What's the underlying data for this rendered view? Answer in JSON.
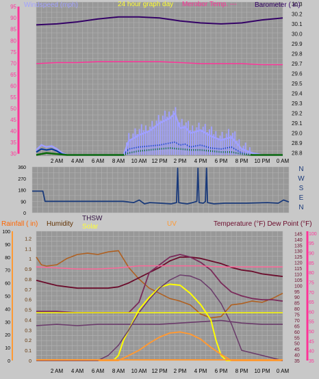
{
  "header": {
    "windspeed_label": "Windspeed (mph)",
    "graph_title": "24 hour graph day",
    "outdoor_label": "Merobor Temp. ---",
    "barometer_label": "Barometer ( in)"
  },
  "direction_labels": [
    "N",
    "W",
    "S",
    "E",
    "N"
  ],
  "bottom_header": {
    "rainfall_label": "Rainfall ( in)",
    "humidity_label": "Humidity",
    "thsw_label": "THSW",
    "solar_label": "Solar",
    "uv_label": "UV",
    "temp_label": "Temperature (°F) Dew Point (°F)"
  },
  "time_labels": [
    "2 AM",
    "4 AM",
    "6 AM",
    "8 AM",
    "10 AM",
    "12 PM",
    "2 PM",
    "4 PM",
    "6 PM",
    "8 PM",
    "10 PM",
    "0 AM"
  ],
  "colors": {
    "plot_bg": "#989898",
    "grid": "#b4b4b4",
    "wind_left": "#ff3399",
    "barometer": "#330066",
    "wind_gust": "#a0a0ff",
    "wind_avg": "#003399",
    "wind_low": "#0a6a0a",
    "direction": "#1a3a7a",
    "humidity": "#b06020",
    "temperature": "#6a0a2a",
    "dew_point": "#7a2a5a",
    "thsw": "#6a3a6a",
    "solar": "#ffff00",
    "uv": "#ff9933",
    "rain": "#ff6699",
    "title_yellow": "#ffff33"
  },
  "chart_data": [
    {
      "type": "line",
      "name": "wind-barometer",
      "left_axis": {
        "label": "Windspeed (mph)",
        "ticks": [
          30,
          35,
          40,
          45,
          50,
          55,
          60,
          65,
          70,
          75,
          80,
          85,
          90,
          95
        ],
        "ylim": [
          29,
          97
        ]
      },
      "right_axis": {
        "label": "Barometer ( in)",
        "ticks": [
          28.8,
          28.9,
          29.0,
          29.1,
          29.2,
          29.3,
          29.4,
          29.5,
          29.6,
          29.7,
          29.8,
          29.9,
          30.0,
          30.1,
          30.2,
          30.3
        ],
        "ylim": [
          28.77,
          30.32
        ]
      },
      "x_range_hours": [
        0,
        24
      ],
      "series": [
        {
          "role": "barometer",
          "x": [
            0,
            2,
            4,
            6,
            8,
            10,
            12,
            14,
            16,
            18,
            20,
            22,
            24
          ],
          "y": [
            30.09,
            30.1,
            30.12,
            30.15,
            30.17,
            30.17,
            30.16,
            30.13,
            30.11,
            30.1,
            30.11,
            30.14,
            30.16
          ]
        },
        {
          "role": "secondary",
          "x": [
            0,
            2,
            4,
            6,
            8,
            10,
            12,
            14,
            16,
            18,
            20,
            22,
            24
          ],
          "y": [
            29.7,
            29.71,
            29.71,
            29.72,
            29.72,
            29.72,
            29.72,
            29.71,
            29.7,
            29.7,
            29.7,
            29.69,
            29.69
          ]
        },
        {
          "role": "wind-gust",
          "x": [
            0,
            0.5,
            1,
            1.5,
            2,
            2.5,
            3,
            8.5,
            9,
            10,
            11,
            12,
            13,
            13.5,
            14,
            14.5,
            15,
            16,
            17,
            18,
            19,
            19.5,
            20,
            20.5,
            21,
            22,
            23,
            24
          ],
          "y": [
            28.83,
            28.88,
            28.86,
            28.87,
            28.84,
            28.8,
            28.78,
            28.78,
            28.92,
            28.98,
            29.02,
            29.1,
            29.15,
            29.2,
            29.05,
            29.06,
            29.0,
            29.03,
            28.97,
            28.93,
            28.96,
            28.9,
            28.84,
            28.82,
            28.8,
            28.78,
            28.78,
            28.78
          ]
        },
        {
          "role": "wind-average",
          "x": [
            0,
            0.5,
            1,
            1.5,
            2,
            2.5,
            3,
            8.5,
            9,
            10,
            11,
            12,
            13,
            13.5,
            14,
            14.5,
            15,
            16,
            17,
            18,
            19,
            19.5,
            20,
            20.5,
            21,
            22,
            23,
            24
          ],
          "y": [
            28.81,
            28.84,
            28.83,
            28.84,
            28.82,
            28.79,
            28.78,
            28.78,
            28.84,
            28.86,
            28.87,
            28.88,
            28.9,
            28.91,
            28.88,
            28.89,
            28.86,
            28.88,
            28.85,
            28.84,
            28.86,
            28.83,
            28.8,
            28.79,
            28.78,
            28.78,
            28.78,
            28.78
          ]
        },
        {
          "role": "wind-low",
          "x": [
            0,
            1,
            2,
            3,
            8.5,
            9,
            10,
            11,
            12,
            13,
            14,
            15,
            16,
            17,
            18,
            19,
            20,
            21,
            24
          ],
          "y": [
            28.78,
            28.8,
            28.79,
            28.78,
            28.78,
            28.8,
            28.82,
            28.83,
            28.84,
            28.85,
            28.84,
            28.83,
            28.83,
            28.82,
            28.81,
            28.81,
            28.79,
            28.78,
            28.78
          ]
        }
      ]
    },
    {
      "type": "line",
      "name": "wind-direction",
      "left_axis": {
        "ticks": [
          0,
          90,
          180,
          270,
          360
        ],
        "ylim": [
          0,
          360
        ]
      },
      "x_range_hours": [
        0,
        24
      ],
      "series": [
        {
          "role": "direction",
          "x": [
            0,
            1,
            1.2,
            8.5,
            9.5,
            10,
            10.5,
            11,
            12,
            13,
            13.5,
            13.6,
            13.7,
            14,
            14.5,
            15,
            15.4,
            15.5,
            15.6,
            16,
            16.2,
            16.3,
            16.4,
            17,
            18,
            20,
            22,
            23,
            23.5,
            24
          ],
          "y": [
            170,
            170,
            90,
            90,
            80,
            100,
            70,
            80,
            75,
            70,
            80,
            350,
            80,
            75,
            70,
            80,
            90,
            350,
            80,
            75,
            90,
            350,
            80,
            70,
            75,
            75,
            80,
            75,
            100,
            85
          ]
        }
      ]
    },
    {
      "type": "line",
      "name": "temperature-humidity-solar",
      "left_axis": {
        "label": "Rainfall ( in)",
        "ticks": [
          0,
          0.1,
          0.2,
          0.3,
          0.4,
          0.5,
          0.6,
          0.7,
          0.8,
          0.9,
          1.0,
          1.1,
          1.2
        ],
        "ylim": [
          0,
          1.27
        ]
      },
      "humidity_axis": {
        "label": "Humidity",
        "ticks": [
          0,
          10,
          20,
          30,
          40,
          50,
          60,
          70,
          80,
          90,
          100
        ],
        "ylim": [
          0,
          100
        ]
      },
      "right_axis": {
        "label": "Temperature (°F) Dew Point (°F)",
        "ticks": [
          35,
          40,
          45,
          50,
          55,
          60,
          65,
          70,
          75,
          80,
          85,
          90,
          95,
          100,
          105,
          110,
          115,
          120,
          125,
          130,
          135,
          140,
          145
        ],
        "ylim": [
          35,
          147
        ]
      },
      "x_range_hours": [
        0,
        24
      ],
      "series": [
        {
          "role": "humidity",
          "x": [
            0,
            0.5,
            1,
            2,
            3,
            4,
            5,
            6,
            7,
            8,
            9,
            10,
            11,
            12,
            13,
            14,
            15,
            16,
            17,
            18,
            19,
            20,
            21,
            22,
            23,
            24
          ],
          "y": [
            80,
            74,
            73,
            74,
            79,
            82,
            83,
            82,
            84,
            85,
            72,
            63,
            56,
            52,
            48,
            46,
            43,
            36,
            33,
            34,
            43,
            44,
            46,
            45,
            48,
            52
          ]
        },
        {
          "role": "temperature",
          "x": [
            0,
            1,
            2,
            3,
            4,
            5,
            6,
            7,
            8,
            9,
            10,
            11,
            12,
            13,
            14,
            15,
            16,
            17,
            18,
            19,
            20,
            21,
            22,
            23,
            24
          ],
          "y": [
            62,
            60,
            58,
            57,
            56,
            56,
            56,
            56,
            57,
            60,
            64,
            68,
            72,
            77,
            80,
            80,
            79,
            77,
            75,
            72,
            70,
            69,
            67,
            66,
            65
          ]
        },
        {
          "role": "thsw",
          "x": [
            0,
            2,
            4,
            6,
            8,
            10,
            12,
            14,
            16,
            18,
            20,
            22,
            24
          ],
          "y": [
            27,
            28,
            27,
            28,
            28,
            28,
            28,
            29,
            30,
            31,
            29,
            28,
            28
          ]
        },
        {
          "role": "dew-point",
          "x": [
            0,
            2,
            4,
            6,
            8,
            9,
            10,
            11,
            12,
            13,
            14,
            15,
            16,
            17,
            18,
            19,
            20,
            21,
            22,
            23,
            24
          ],
          "y": [
            38,
            38,
            37,
            37,
            37,
            37,
            45,
            68,
            74,
            80,
            82,
            80,
            76,
            70,
            60,
            53,
            50,
            48,
            47,
            47,
            46
          ]
        },
        {
          "role": "rh-line",
          "x": [
            0,
            2,
            4,
            6,
            8,
            10,
            12,
            14,
            16,
            18,
            20,
            22,
            24
          ],
          "y": [
            0.92,
            0.91,
            0.9,
            0.9,
            0.91,
            0.93,
            0.93,
            0.93,
            0.93,
            0.92,
            0.92,
            0.92,
            0.92
          ]
        },
        {
          "role": "solar",
          "x": [
            0,
            6,
            7.5,
            8,
            8.5,
            9,
            10,
            11,
            12,
            13,
            14,
            15,
            16,
            17,
            17.5,
            18,
            18.5,
            24
          ],
          "y": [
            0,
            0,
            0,
            0.05,
            0.2,
            0.3,
            0.5,
            0.62,
            0.72,
            0.75,
            0.74,
            0.66,
            0.55,
            0.4,
            0.2,
            0.05,
            0,
            0
          ]
        },
        {
          "role": "uv",
          "x": [
            0,
            8,
            9,
            10,
            11,
            12,
            13,
            14,
            15,
            16,
            17,
            18,
            19,
            24
          ],
          "y": [
            0,
            0,
            0.05,
            0.1,
            0.17,
            0.23,
            0.27,
            0.28,
            0.26,
            0.21,
            0.13,
            0.06,
            0,
            0
          ]
        },
        {
          "role": "thsw-arc",
          "x": [
            0,
            6,
            7,
            8,
            9,
            10,
            11,
            12,
            13,
            14,
            15,
            16,
            17,
            18,
            19,
            20,
            24
          ],
          "y": [
            0,
            0,
            0.05,
            0.15,
            0.3,
            0.47,
            0.6,
            0.71,
            0.79,
            0.84,
            0.83,
            0.79,
            0.7,
            0.56,
            0.36,
            0.1,
            0
          ]
        },
        {
          "role": "solar-baseline",
          "x": [
            0,
            24
          ],
          "y": [
            0.47,
            0.47
          ]
        }
      ]
    }
  ]
}
